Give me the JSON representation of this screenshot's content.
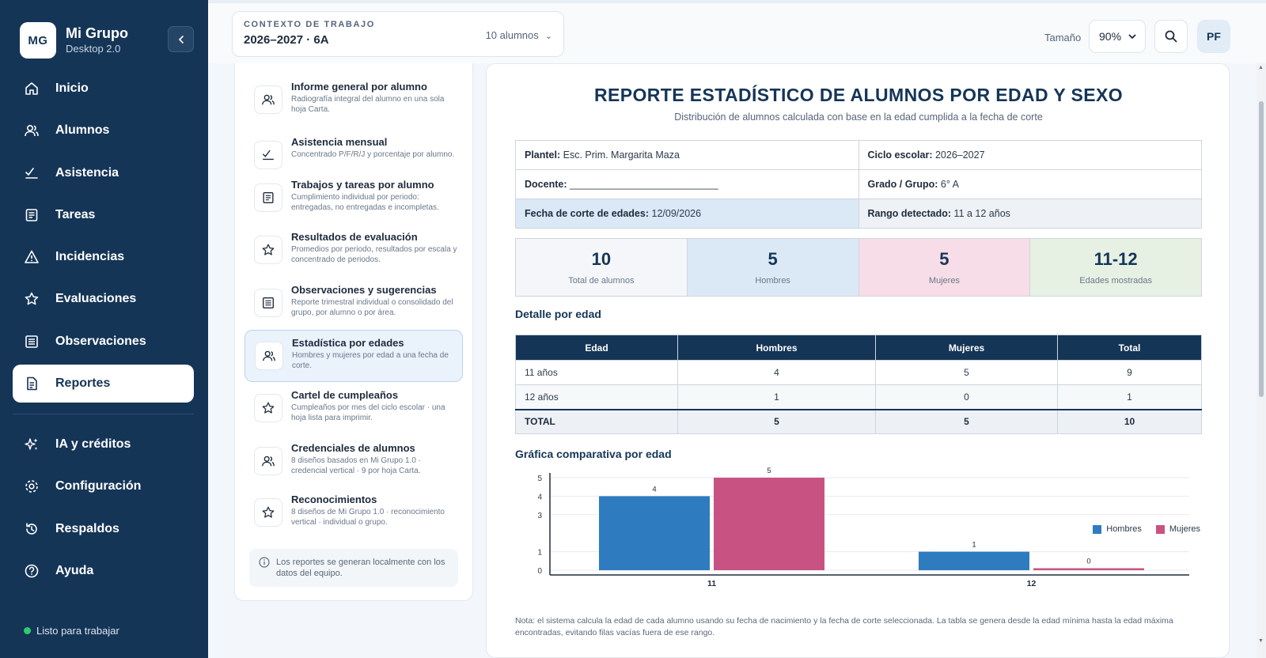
{
  "brand": {
    "initials": "MG",
    "name": "Mi Grupo",
    "version": "Desktop 2.0"
  },
  "nav": [
    {
      "label": "Inicio",
      "icon": "home-icon"
    },
    {
      "label": "Alumnos",
      "icon": "users-icon"
    },
    {
      "label": "Asistencia",
      "icon": "check-list-icon"
    },
    {
      "label": "Tareas",
      "icon": "document-icon"
    },
    {
      "label": "Incidencias",
      "icon": "warning-icon"
    },
    {
      "label": "Evaluaciones",
      "icon": "star-icon"
    },
    {
      "label": "Observaciones",
      "icon": "notes-icon"
    },
    {
      "label": "Reportes",
      "icon": "report-icon",
      "active": true
    }
  ],
  "nav_secondary": [
    {
      "label": "IA y créditos",
      "icon": "sparkles-icon"
    },
    {
      "label": "Configuración",
      "icon": "gear-icon"
    },
    {
      "label": "Respaldos",
      "icon": "history-icon"
    },
    {
      "label": "Ayuda",
      "icon": "help-icon"
    }
  ],
  "status": {
    "text": "Listo para trabajar",
    "color": "#2ecc71"
  },
  "context": {
    "label": "CONTEXTO DE TRABAJO",
    "value": "2026–2027 · 6A",
    "count": "10 alumnos"
  },
  "toolbar": {
    "size_label": "Tamaño",
    "size_value": "90%",
    "avatar": "PF"
  },
  "reports": [
    {
      "title": "Informe general por alumno",
      "desc": "Radiografía integral del alumno en una sola hoja Carta.",
      "icon": "users-icon"
    },
    {
      "title": "Asistencia mensual",
      "desc": "Concentrado P/F/R/J y porcentaje por alumno.",
      "icon": "check-list-icon"
    },
    {
      "title": "Trabajos y tareas por alumno",
      "desc": "Cumplimiento individual por periodo: entregadas, no entregadas e incompletas.",
      "icon": "document-icon"
    },
    {
      "title": "Resultados de evaluación",
      "desc": "Promedios por periodo, resultados por escala y concentrado de periodos.",
      "icon": "star-icon"
    },
    {
      "title": "Observaciones y sugerencias",
      "desc": "Reporte trimestral individual o consolidado del grupo, por alumno o por área.",
      "icon": "notes-icon"
    },
    {
      "title": "Estadística por edades",
      "desc": "Hombres y mujeres por edad a una fecha de corte.",
      "icon": "users-icon",
      "active": true
    },
    {
      "title": "Cartel de cumpleaños",
      "desc": "Cumpleaños por mes del ciclo escolar · una hoja lista para imprimir.",
      "icon": "star-icon"
    },
    {
      "title": "Credenciales de alumnos",
      "desc": "8 diseños basados en Mi Grupo 1.0 · credencial vertical · 9 por hoja Carta.",
      "icon": "users-icon"
    },
    {
      "title": "Reconocimientos",
      "desc": "8 diseños de Mi Grupo 1.0 · reconocimiento vertical · individual o grupo.",
      "icon": "star-icon"
    }
  ],
  "list_note": "Los reportes se generan localmente con los datos del equipo.",
  "report": {
    "title": "REPORTE ESTADÍSTICO DE ALUMNOS POR EDAD Y SEXO",
    "subtitle": "Distribución de alumnos calculada con base en la edad cumplida a la fecha de corte",
    "info": {
      "plantel_label": "Plantel:",
      "plantel": "Esc. Prim. Margarita Maza",
      "ciclo_label": "Ciclo escolar:",
      "ciclo": "2026–2027",
      "docente_label": "Docente:",
      "docente": "___________________________",
      "grado_label": "Grado / Grupo:",
      "grado": "6° A",
      "fecha_label": "Fecha de corte de edades:",
      "fecha": "12/09/2026",
      "rango_label": "Rango detectado:",
      "rango": "11 a 12 años"
    },
    "stats": [
      {
        "value": "10",
        "label": "Total de alumnos"
      },
      {
        "value": "5",
        "label": "Hombres"
      },
      {
        "value": "5",
        "label": "Mujeres"
      },
      {
        "value": "11-12",
        "label": "Edades mostradas"
      }
    ],
    "detail_title": "Detalle por edad",
    "table": {
      "headers": [
        "Edad",
        "Hombres",
        "Mujeres",
        "Total"
      ],
      "rows": [
        [
          "11 años",
          "4",
          "5",
          "9"
        ],
        [
          "12 años",
          "1",
          "0",
          "1"
        ]
      ],
      "total": [
        "TOTAL",
        "5",
        "5",
        "10"
      ]
    },
    "chart_title": "Gráfica comparativa por edad",
    "note": "Nota: el sistema calcula la edad de cada alumno usando su fecha de nacimiento y la fecha de corte seleccionada. La tabla se genera desde la edad mínima hasta la edad máxima encontradas, evitando filas vacías fuera de ese rango."
  },
  "chart_data": {
    "type": "bar",
    "categories": [
      "11",
      "12"
    ],
    "series": [
      {
        "name": "Hombres",
        "values": [
          4,
          1
        ],
        "color": "#2f7bbf"
      },
      {
        "name": "Mujeres",
        "values": [
          5,
          0
        ],
        "color": "#c85382"
      }
    ],
    "yticks": [
      0,
      1,
      3,
      4,
      5
    ],
    "ylim": [
      0,
      5
    ],
    "legend": "top-right",
    "data_labels": true
  }
}
